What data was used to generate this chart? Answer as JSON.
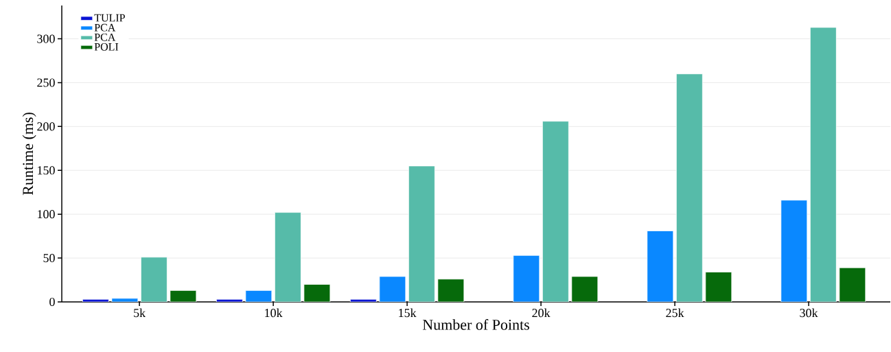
{
  "chart_data": {
    "type": "bar",
    "xlabel": "Number of Points",
    "ylabel": "Runtime (ms)",
    "categories": [
      "5k",
      "10k",
      "15k",
      "20k",
      "25k",
      "30k"
    ],
    "series": [
      {
        "name": "TULIP",
        "color": "#0a14d4",
        "values": [
          3,
          3,
          3,
          null,
          null,
          null
        ]
      },
      {
        "name": "PCA",
        "color": "#0a88ff",
        "values": [
          4,
          13,
          29,
          53,
          81,
          116
        ]
      },
      {
        "name": "PCA",
        "color": "#56bba9",
        "values": [
          51,
          102,
          155,
          206,
          260,
          313
        ]
      },
      {
        "name": "POLI",
        "color": "#066a0b",
        "values": [
          13,
          20,
          26,
          29,
          34,
          39
        ]
      }
    ],
    "ylim": [
      0,
      338
    ],
    "yticks": [
      0,
      50,
      100,
      150,
      200,
      250,
      300
    ],
    "grid": "y",
    "legend": "top left"
  }
}
